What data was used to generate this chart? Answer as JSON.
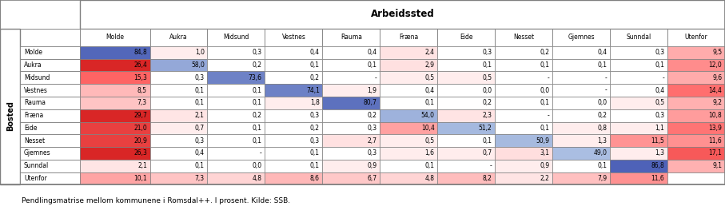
{
  "title": "Arbeidssted",
  "row_label": "Bosted",
  "col_headers": [
    "",
    "Molde",
    "Aukra",
    "Midsund",
    "Vestnes",
    "Rauma",
    "Fræna",
    "Eide",
    "Nesset",
    "Gjemnes",
    "Sunndal",
    "Utenfor"
  ],
  "row_headers": [
    "Molde",
    "Aukra",
    "Midsund",
    "Vestnes",
    "Rauma",
    "Fræna",
    "Eide",
    "Nesset",
    "Gjemnes",
    "Sunndal",
    "Utenfor"
  ],
  "data": [
    [
      "84,8",
      "1,0",
      "0,3",
      "0,4",
      "0,4",
      "2,4",
      "0,3",
      "0,2",
      "0,4",
      "0,3",
      "9,5"
    ],
    [
      "26,4",
      "58,0",
      "0,2",
      "0,1",
      "0,1",
      "2,9",
      "0,1",
      "0,1",
      "0,1",
      "0,1",
      "12,0"
    ],
    [
      "15,3",
      "0,3",
      "73,6",
      "0,2",
      "-",
      "0,5",
      "0,5",
      "-",
      "-",
      "-",
      "9,6"
    ],
    [
      "8,5",
      "0,1",
      "0,1",
      "74,1",
      "1,9",
      "0,4",
      "0,0",
      "0,0",
      "-",
      "0,4",
      "14,4"
    ],
    [
      "7,3",
      "0,1",
      "0,1",
      "1,8",
      "80,7",
      "0,1",
      "0,2",
      "0,1",
      "0,0",
      "0,5",
      "9,2"
    ],
    [
      "29,7",
      "2,1",
      "0,2",
      "0,3",
      "0,2",
      "54,0",
      "2,3",
      "-",
      "0,2",
      "0,3",
      "10,8"
    ],
    [
      "21,0",
      "0,7",
      "0,1",
      "0,2",
      "0,3",
      "10,4",
      "51,2",
      "0,1",
      "0,8",
      "1,1",
      "13,9"
    ],
    [
      "20,9",
      "0,3",
      "0,1",
      "0,3",
      "2,7",
      "0,5",
      "0,1",
      "50,9",
      "1,3",
      "11,5",
      "11,6"
    ],
    [
      "26,3",
      "0,4",
      "-",
      "0,1",
      "0,3",
      "1,6",
      "0,7",
      "3,1",
      "49,0",
      "1,3",
      "17,1"
    ],
    [
      "2,1",
      "0,1",
      "0,0",
      "0,1",
      "0,9",
      "0,1",
      "-",
      "0,9",
      "0,1",
      "86,8",
      "9,1"
    ],
    [
      "10,1",
      "7,3",
      "4,8",
      "8,6",
      "6,7",
      "4,8",
      "8,2",
      "2,2",
      "7,9",
      "11,6",
      ""
    ]
  ],
  "footnote": "Pendlingsmatrise mellom kommunene i Romsdal++. I prosent. Kilde: SSB.",
  "bg_color": "#ffffff",
  "border_color": "#7f7f7f",
  "diagonal_colors": {
    "84,8": "#7594c8",
    "58,0": "#8aaad4",
    "73,6": "#7fa3d0",
    "74,1": "#7ea2cf",
    "80,7": "#7899cb",
    "54,0": "#8db0d6",
    "51,2": "#90b3d7",
    "50,9": "#90b4d7",
    "49,0": "#92b5d8",
    "86,8": "#7290c6"
  }
}
